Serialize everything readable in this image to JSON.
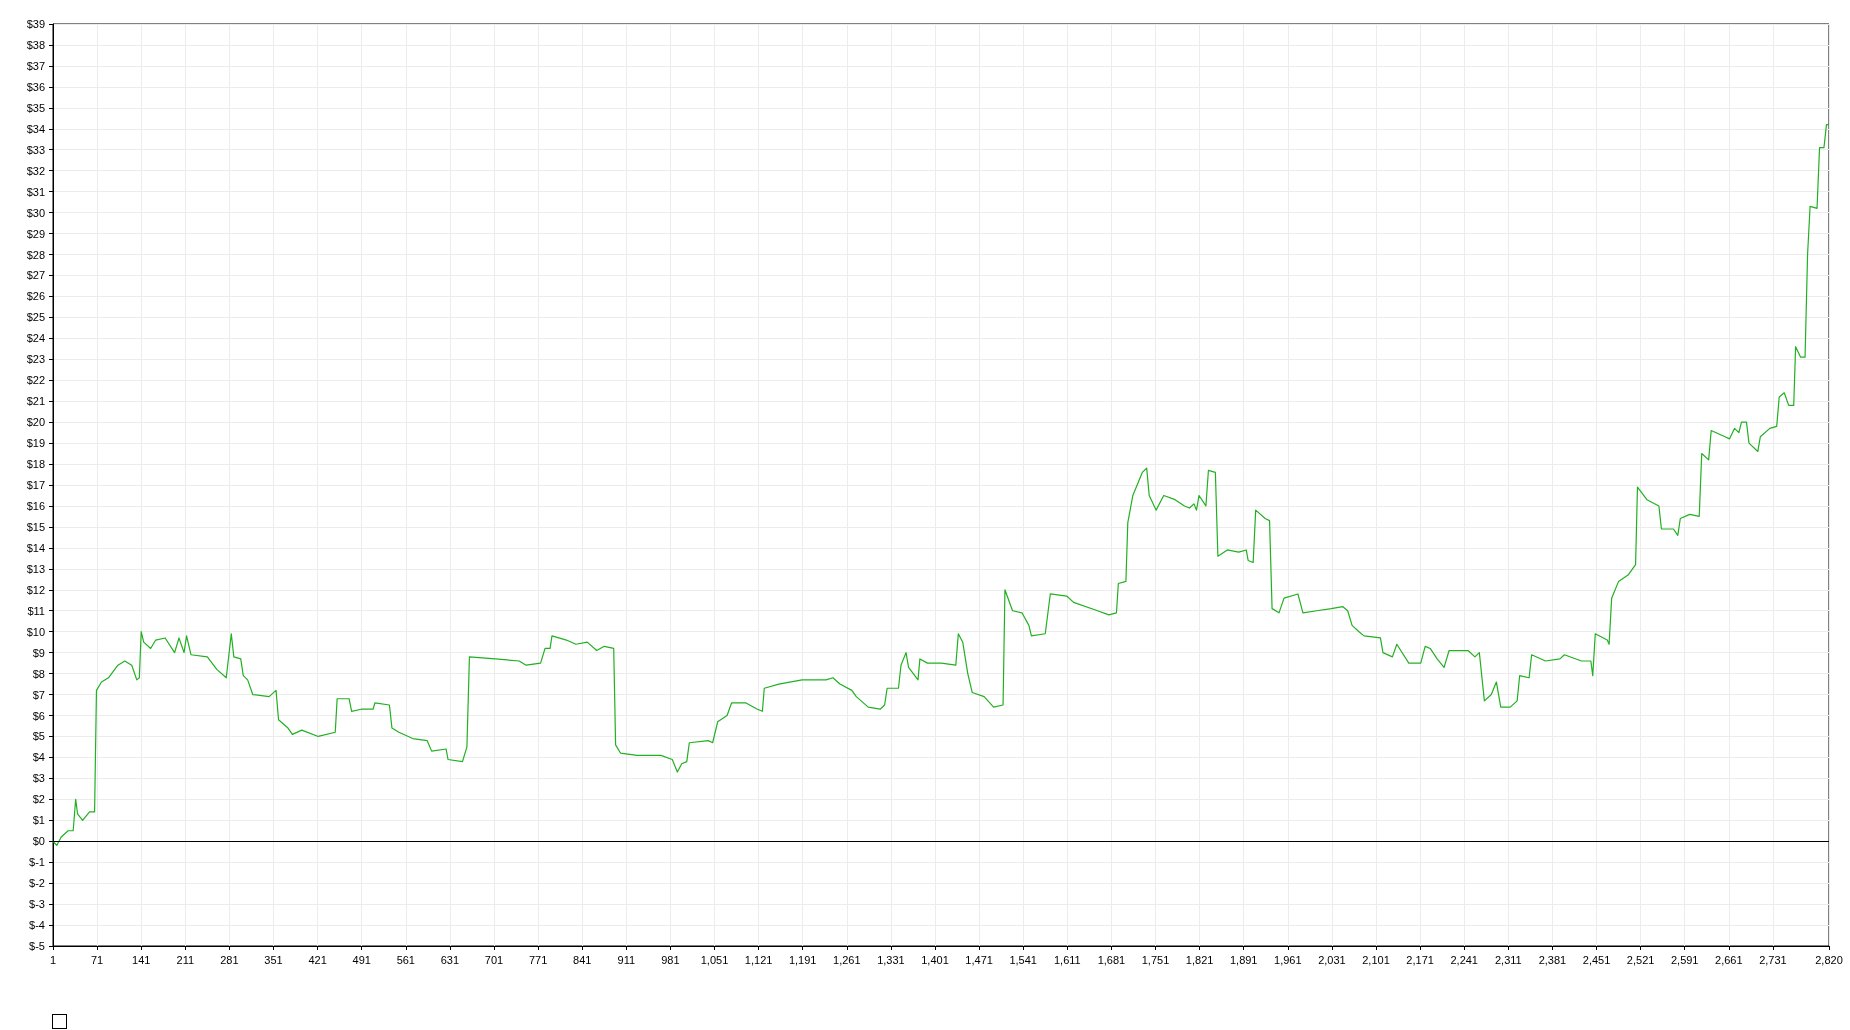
{
  "chart_data": {
    "type": "line",
    "grid": true,
    "marker": "none",
    "line_style": "solid",
    "xlim": [
      1,
      2820
    ],
    "xticks": [
      1,
      71,
      141,
      211,
      281,
      351,
      421,
      491,
      561,
      631,
      701,
      771,
      841,
      911,
      981,
      {
        "value": 1051,
        "label": "1,051"
      },
      {
        "value": 1121,
        "label": "1,121"
      },
      {
        "value": 1191,
        "label": "1,191"
      },
      {
        "value": 1261,
        "label": "1,261"
      },
      {
        "value": 1331,
        "label": "1,331"
      },
      {
        "value": 1401,
        "label": "1,401"
      },
      {
        "value": 1471,
        "label": "1,471"
      },
      {
        "value": 1541,
        "label": "1,541"
      },
      {
        "value": 1611,
        "label": "1,611"
      },
      {
        "value": 1681,
        "label": "1,681"
      },
      {
        "value": 1751,
        "label": "1,751"
      },
      {
        "value": 1821,
        "label": "1,821"
      },
      {
        "value": 1891,
        "label": "1,891"
      },
      {
        "value": 1961,
        "label": "1,961"
      },
      {
        "value": 2031,
        "label": "2,031"
      },
      {
        "value": 2101,
        "label": "2,101"
      },
      {
        "value": 2171,
        "label": "2,171"
      },
      {
        "value": 2241,
        "label": "2,241"
      },
      {
        "value": 2311,
        "label": "2,311"
      },
      {
        "value": 2381,
        "label": "2,381"
      },
      {
        "value": 2451,
        "label": "2,451"
      },
      {
        "value": 2521,
        "label": "2,521"
      },
      {
        "value": 2591,
        "label": "2,591"
      },
      {
        "value": 2661,
        "label": "2,661"
      },
      {
        "value": 2731,
        "label": "2,731"
      },
      {
        "value": 2820,
        "label": "2,820"
      }
    ],
    "ylim": [
      -5,
      39
    ],
    "yticks": [
      {
        "value": -5,
        "label": "$-5"
      },
      {
        "value": -4,
        "label": "$-4"
      },
      {
        "value": -3,
        "label": "$-3"
      },
      {
        "value": -2,
        "label": "$-2"
      },
      {
        "value": -1,
        "label": "$-1"
      },
      {
        "value": 0,
        "label": "$0"
      },
      {
        "value": 1,
        "label": "$1"
      },
      {
        "value": 2,
        "label": "$2"
      },
      {
        "value": 3,
        "label": "$3"
      },
      {
        "value": 4,
        "label": "$4"
      },
      {
        "value": 5,
        "label": "$5"
      },
      {
        "value": 6,
        "label": "$6"
      },
      {
        "value": 7,
        "label": "$7"
      },
      {
        "value": 8,
        "label": "$8"
      },
      {
        "value": 9,
        "label": "$9"
      },
      {
        "value": 10,
        "label": "$10"
      },
      {
        "value": 11,
        "label": "$11"
      },
      {
        "value": 12,
        "label": "$12"
      },
      {
        "value": 13,
        "label": "$13"
      },
      {
        "value": 14,
        "label": "$14"
      },
      {
        "value": 15,
        "label": "$15"
      },
      {
        "value": 16,
        "label": "$16"
      },
      {
        "value": 17,
        "label": "$17"
      },
      {
        "value": 18,
        "label": "$18"
      },
      {
        "value": 19,
        "label": "$19"
      },
      {
        "value": 20,
        "label": "$20"
      },
      {
        "value": 21,
        "label": "$21"
      },
      {
        "value": 22,
        "label": "$22"
      },
      {
        "value": 23,
        "label": "$23"
      },
      {
        "value": 24,
        "label": "$24"
      },
      {
        "value": 25,
        "label": "$25"
      },
      {
        "value": 26,
        "label": "$26"
      },
      {
        "value": 27,
        "label": "$27"
      },
      {
        "value": 28,
        "label": "$28"
      },
      {
        "value": 29,
        "label": "$29"
      },
      {
        "value": 30,
        "label": "$30"
      },
      {
        "value": 31,
        "label": "$31"
      },
      {
        "value": 32,
        "label": "$32"
      },
      {
        "value": 33,
        "label": "$33"
      },
      {
        "value": 34,
        "label": "$34"
      },
      {
        "value": 35,
        "label": "$35"
      },
      {
        "value": 36,
        "label": "$36"
      },
      {
        "value": 37,
        "label": "$37"
      },
      {
        "value": 38,
        "label": "$38"
      },
      {
        "value": 39,
        "label": "$39"
      }
    ],
    "ref_lines": [
      {
        "axis": "y",
        "value": 0,
        "color": "#000000"
      }
    ],
    "series": [
      {
        "color": "#22b022",
        "x": [
          1,
          7,
          14,
          25,
          33,
          37,
          40,
          48,
          59,
          67,
          70,
          78,
          89,
          104,
          115,
          126,
          134,
          138,
          141,
          145,
          156,
          164,
          179,
          194,
          201,
          209,
          213,
          220,
          246,
          261,
          276,
          284,
          288,
          299,
          303,
          310,
          318,
          344,
          355,
          359,
          374,
          381,
          396,
          422,
          449,
          452,
          471,
          475,
          490,
          509,
          512,
          535,
          539,
          550,
          572,
          595,
          602,
          625,
          628,
          651,
          658,
          662,
          703,
          741,
          752,
          775,
          782,
          790,
          793,
          816,
          831,
          849,
          864,
          876,
          891,
          894,
          902,
          928,
          966,
          984,
          992,
          999,
          1007,
          1011,
          1041,
          1048,
          1056,
          1071,
          1078,
          1101,
          1119,
          1127,
          1130,
          1153,
          1190,
          1228,
          1239,
          1250,
          1269,
          1276,
          1295,
          1314,
          1321,
          1325,
          1343,
          1347,
          1355,
          1359,
          1374,
          1377,
          1389,
          1411,
          1434,
          1438,
          1445,
          1453,
          1460,
          1479,
          1494,
          1509,
          1512,
          1524,
          1539,
          1550,
          1554,
          1576,
          1584,
          1610,
          1621,
          1659,
          1677,
          1689,
          1692,
          1704,
          1707,
          1715,
          1730,
          1737,
          1741,
          1752,
          1764,
          1782,
          1797,
          1805,
          1812,
          1816,
          1820,
          1831,
          1835,
          1846,
          1850,
          1865,
          1883,
          1895,
          1898,
          1906,
          1910,
          1925,
          1932,
          1936,
          1947,
          1955,
          1977,
          1985,
          2007,
          2030,
          2048,
          2056,
          2063,
          2074,
          2082,
          2108,
          2112,
          2127,
          2134,
          2153,
          2172,
          2179,
          2187,
          2198,
          2209,
          2217,
          2247,
          2258,
          2265,
          2273,
          2284,
          2292,
          2299,
          2314,
          2325,
          2329,
          2344,
          2348,
          2370,
          2393,
          2400,
          2427,
          2442,
          2445,
          2449,
          2468,
          2471,
          2475,
          2486,
          2501,
          2513,
          2516,
          2531,
          2550,
          2554,
          2573,
          2580,
          2584,
          2599,
          2614,
          2618,
          2629,
          2633,
          2655,
          2662,
          2670,
          2677,
          2681,
          2689,
          2693,
          2707,
          2711,
          2726,
          2737,
          2741,
          2749,
          2756,
          2764,
          2767,
          2775,
          2782,
          2786,
          2790,
          2801,
          2805,
          2812,
          2816,
          2820
        ],
        "values": [
          0,
          -0.2,
          0.2,
          0.5,
          0.5,
          2,
          1.3,
          1.0,
          1.4,
          1.4,
          7.2,
          7.6,
          7.8,
          8.4,
          8.6,
          8.4,
          7.7,
          7.8,
          10.0,
          9.5,
          9.2,
          9.6,
          9.7,
          9.0,
          9.7,
          9.0,
          9.8,
          8.9,
          8.8,
          8.2,
          7.8,
          9.9,
          8.8,
          8.7,
          7.9,
          7.7,
          7.0,
          6.9,
          7.2,
          5.8,
          5.4,
          5.1,
          5.3,
          5.0,
          5.2,
          6.8,
          6.8,
          6.2,
          6.3,
          6.3,
          6.6,
          6.5,
          5.4,
          5.2,
          4.9,
          4.8,
          4.3,
          4.4,
          3.9,
          3.8,
          4.5,
          8.8,
          8.7,
          8.6,
          8.4,
          8.5,
          9.2,
          9.2,
          9.8,
          9.6,
          9.4,
          9.5,
          9.1,
          9.3,
          9.2,
          4.6,
          4.2,
          4.1,
          4.1,
          3.9,
          3.3,
          3.7,
          3.8,
          4.7,
          4.8,
          4.7,
          5.7,
          6.0,
          6.6,
          6.6,
          6.3,
          6.2,
          7.3,
          7.5,
          7.7,
          7.7,
          7.8,
          7.5,
          7.2,
          6.9,
          6.4,
          6.3,
          6.5,
          7.3,
          7.3,
          8.4,
          9.0,
          8.3,
          7.7,
          8.7,
          8.5,
          8.5,
          8.4,
          9.9,
          9.5,
          8.0,
          7.1,
          6.9,
          6.4,
          6.5,
          12.0,
          11.0,
          10.9,
          10.3,
          9.8,
          9.9,
          11.8,
          11.7,
          11.4,
          11.0,
          10.8,
          10.9,
          12.3,
          12.4,
          15.2,
          16.5,
          17.6,
          17.8,
          16.5,
          15.8,
          16.5,
          16.3,
          16.0,
          15.9,
          16.1,
          15.8,
          16.5,
          16.0,
          17.7,
          17.6,
          13.6,
          13.9,
          13.8,
          13.9,
          13.4,
          13.3,
          15.8,
          15.4,
          15.3,
          11.1,
          10.9,
          11.6,
          11.8,
          10.9,
          11.0,
          11.1,
          11.2,
          11.0,
          10.3,
          10.0,
          9.8,
          9.7,
          9.0,
          8.8,
          9.4,
          8.5,
          8.5,
          9.3,
          9.2,
          8.7,
          8.3,
          9.1,
          9.1,
          8.8,
          9.0,
          6.7,
          7.0,
          7.6,
          6.4,
          6.4,
          6.7,
          7.9,
          7.8,
          8.9,
          8.6,
          8.7,
          8.9,
          8.6,
          8.6,
          7.9,
          9.9,
          9.6,
          9.4,
          11.6,
          12.4,
          12.7,
          13.2,
          16.9,
          16.3,
          16.0,
          14.9,
          14.9,
          14.6,
          15.4,
          15.6,
          15.5,
          18.5,
          18.2,
          19.6,
          19.3,
          19.2,
          19.7,
          19.5,
          20.0,
          20.0,
          19.0,
          18.6,
          19.3,
          19.7,
          19.8,
          21.2,
          21.4,
          20.8,
          20.8,
          23.6,
          23.1,
          23.1,
          28.0,
          30.3,
          30.2,
          33.1,
          33.1,
          34.2,
          34.2
        ]
      }
    ]
  }
}
